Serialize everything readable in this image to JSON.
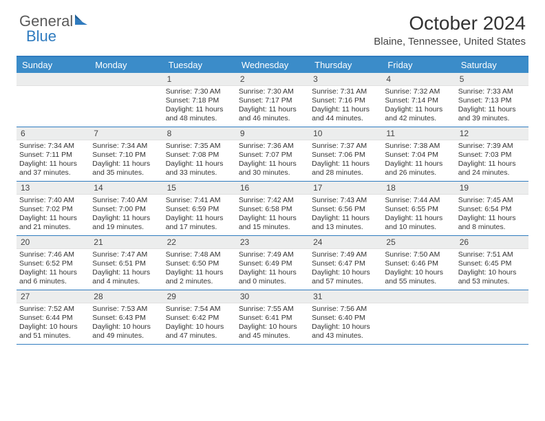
{
  "brand": {
    "part1": "General",
    "part2": "Blue"
  },
  "title": "October 2024",
  "location": "Blaine, Tennessee, United States",
  "colors": {
    "header_bar": "#3b8cc9",
    "rule": "#2f7bbf",
    "daynum_bg": "#eceded",
    "text": "#333333",
    "logo_gray": "#5a5a5a",
    "logo_blue": "#2f7bbf"
  },
  "day_labels": [
    "Sunday",
    "Monday",
    "Tuesday",
    "Wednesday",
    "Thursday",
    "Friday",
    "Saturday"
  ],
  "weeks": [
    [
      null,
      null,
      {
        "n": "1",
        "sunrise": "7:30 AM",
        "sunset": "7:18 PM",
        "dl": "11 hours and 48 minutes."
      },
      {
        "n": "2",
        "sunrise": "7:30 AM",
        "sunset": "7:17 PM",
        "dl": "11 hours and 46 minutes."
      },
      {
        "n": "3",
        "sunrise": "7:31 AM",
        "sunset": "7:16 PM",
        "dl": "11 hours and 44 minutes."
      },
      {
        "n": "4",
        "sunrise": "7:32 AM",
        "sunset": "7:14 PM",
        "dl": "11 hours and 42 minutes."
      },
      {
        "n": "5",
        "sunrise": "7:33 AM",
        "sunset": "7:13 PM",
        "dl": "11 hours and 39 minutes."
      }
    ],
    [
      {
        "n": "6",
        "sunrise": "7:34 AM",
        "sunset": "7:11 PM",
        "dl": "11 hours and 37 minutes."
      },
      {
        "n": "7",
        "sunrise": "7:34 AM",
        "sunset": "7:10 PM",
        "dl": "11 hours and 35 minutes."
      },
      {
        "n": "8",
        "sunrise": "7:35 AM",
        "sunset": "7:08 PM",
        "dl": "11 hours and 33 minutes."
      },
      {
        "n": "9",
        "sunrise": "7:36 AM",
        "sunset": "7:07 PM",
        "dl": "11 hours and 30 minutes."
      },
      {
        "n": "10",
        "sunrise": "7:37 AM",
        "sunset": "7:06 PM",
        "dl": "11 hours and 28 minutes."
      },
      {
        "n": "11",
        "sunrise": "7:38 AM",
        "sunset": "7:04 PM",
        "dl": "11 hours and 26 minutes."
      },
      {
        "n": "12",
        "sunrise": "7:39 AM",
        "sunset": "7:03 PM",
        "dl": "11 hours and 24 minutes."
      }
    ],
    [
      {
        "n": "13",
        "sunrise": "7:40 AM",
        "sunset": "7:02 PM",
        "dl": "11 hours and 21 minutes."
      },
      {
        "n": "14",
        "sunrise": "7:40 AM",
        "sunset": "7:00 PM",
        "dl": "11 hours and 19 minutes."
      },
      {
        "n": "15",
        "sunrise": "7:41 AM",
        "sunset": "6:59 PM",
        "dl": "11 hours and 17 minutes."
      },
      {
        "n": "16",
        "sunrise": "7:42 AM",
        "sunset": "6:58 PM",
        "dl": "11 hours and 15 minutes."
      },
      {
        "n": "17",
        "sunrise": "7:43 AM",
        "sunset": "6:56 PM",
        "dl": "11 hours and 13 minutes."
      },
      {
        "n": "18",
        "sunrise": "7:44 AM",
        "sunset": "6:55 PM",
        "dl": "11 hours and 10 minutes."
      },
      {
        "n": "19",
        "sunrise": "7:45 AM",
        "sunset": "6:54 PM",
        "dl": "11 hours and 8 minutes."
      }
    ],
    [
      {
        "n": "20",
        "sunrise": "7:46 AM",
        "sunset": "6:52 PM",
        "dl": "11 hours and 6 minutes."
      },
      {
        "n": "21",
        "sunrise": "7:47 AM",
        "sunset": "6:51 PM",
        "dl": "11 hours and 4 minutes."
      },
      {
        "n": "22",
        "sunrise": "7:48 AM",
        "sunset": "6:50 PM",
        "dl": "11 hours and 2 minutes."
      },
      {
        "n": "23",
        "sunrise": "7:49 AM",
        "sunset": "6:49 PM",
        "dl": "11 hours and 0 minutes."
      },
      {
        "n": "24",
        "sunrise": "7:49 AM",
        "sunset": "6:47 PM",
        "dl": "10 hours and 57 minutes."
      },
      {
        "n": "25",
        "sunrise": "7:50 AM",
        "sunset": "6:46 PM",
        "dl": "10 hours and 55 minutes."
      },
      {
        "n": "26",
        "sunrise": "7:51 AM",
        "sunset": "6:45 PM",
        "dl": "10 hours and 53 minutes."
      }
    ],
    [
      {
        "n": "27",
        "sunrise": "7:52 AM",
        "sunset": "6:44 PM",
        "dl": "10 hours and 51 minutes."
      },
      {
        "n": "28",
        "sunrise": "7:53 AM",
        "sunset": "6:43 PM",
        "dl": "10 hours and 49 minutes."
      },
      {
        "n": "29",
        "sunrise": "7:54 AM",
        "sunset": "6:42 PM",
        "dl": "10 hours and 47 minutes."
      },
      {
        "n": "30",
        "sunrise": "7:55 AM",
        "sunset": "6:41 PM",
        "dl": "10 hours and 45 minutes."
      },
      {
        "n": "31",
        "sunrise": "7:56 AM",
        "sunset": "6:40 PM",
        "dl": "10 hours and 43 minutes."
      },
      null,
      null
    ]
  ],
  "labels": {
    "sunrise": "Sunrise:",
    "sunset": "Sunset:",
    "daylight": "Daylight:"
  }
}
